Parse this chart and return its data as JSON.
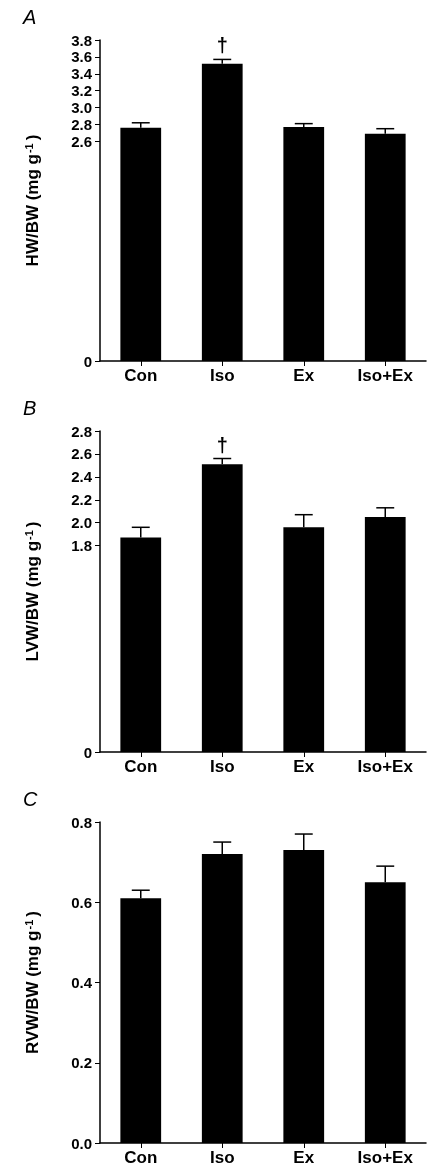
{
  "chart_data": [
    {
      "type": "bar",
      "title": "A",
      "ylabel": "HW/BW (mg g$^{-1}$)",
      "categories": [
        "Con",
        "Iso",
        "Ex",
        "Iso+Ex"
      ],
      "values": [
        2.76,
        3.52,
        2.77,
        2.69
      ],
      "errors": [
        0.06,
        0.05,
        0.04,
        0.06
      ],
      "color": "#000000",
      "ylim": [
        0,
        3.8
      ],
      "yticks": [
        0,
        2.6,
        2.8,
        {
          "value": 3,
          "label": "3.0"
        },
        3.2,
        3.4,
        3.6,
        3.8
      ],
      "annotations": [
        "†"
      ]
    },
    {
      "type": "bar",
      "title": "B",
      "ylabel": "LVW/BW (mg g$^{-1}$)",
      "categories": [
        "Con",
        "Iso",
        "Ex",
        "Iso+Ex"
      ],
      "values": [
        1.87,
        2.51,
        1.96,
        2.05
      ],
      "errors": [
        0.09,
        0.05,
        0.11,
        0.08
      ],
      "color": "#000000",
      "ylim": [
        0,
        2.8
      ],
      "yticks": [
        0,
        1.8,
        {
          "value": 2,
          "label": "2.0"
        },
        2.2,
        2.4,
        2.6,
        2.8
      ],
      "annotations": [
        "†"
      ]
    },
    {
      "type": "bar",
      "title": "C",
      "ylabel": "RVW/BW (mg g$^{-1}$)",
      "categories": [
        "Con",
        "Iso",
        "Ex",
        "Iso+Ex"
      ],
      "values": [
        0.61,
        0.72,
        0.73,
        0.65
      ],
      "errors": [
        0.02,
        0.03,
        0.04,
        0.04
      ],
      "color": "#000000",
      "ylim": [
        0,
        0.8
      ],
      "yticks": [
        {
          "value": 0,
          "label": "0.0"
        },
        0.2,
        0.4,
        0.6,
        0.8
      ]
    }
  ]
}
